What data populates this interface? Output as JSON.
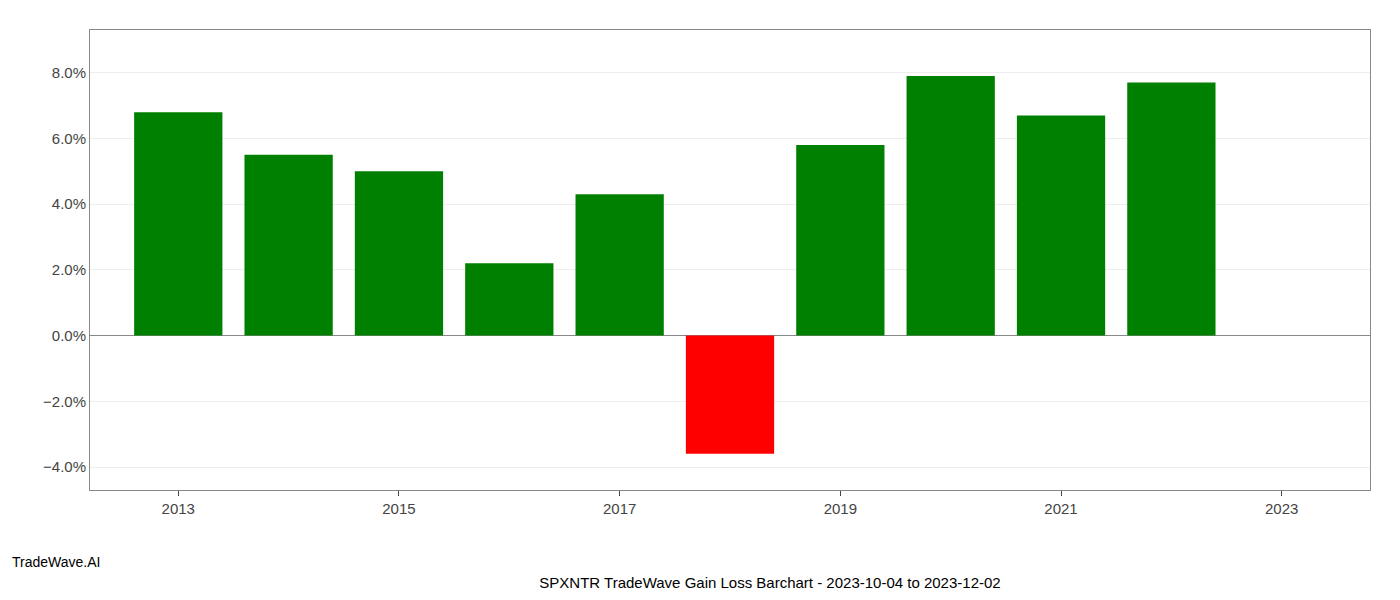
{
  "chart_data": {
    "type": "bar",
    "title": "SPXNTR TradeWave Gain Loss Barchart - 2023-10-04 to 2023-12-02",
    "annotations": [
      "TradeWave.AI"
    ],
    "x": [
      2013,
      2014,
      2015,
      2016,
      2017,
      2018,
      2019,
      2020,
      2021,
      2022
    ],
    "values": [
      0.068,
      0.055,
      0.05,
      0.022,
      0.043,
      -0.036,
      0.058,
      0.079,
      0.067,
      0.077
    ],
    "colors": [
      "#008000",
      "#008000",
      "#008000",
      "#008000",
      "#008000",
      "#ff0000",
      "#008000",
      "#008000",
      "#008000",
      "#008000"
    ],
    "xlim": [
      2012.2,
      2023.8
    ],
    "xticks": [
      2013,
      2015,
      2017,
      2019,
      2021,
      2023
    ],
    "ylim": [
      -0.047,
      0.093
    ],
    "yticks": [
      {
        "value": -0.04,
        "label": "−4.0%"
      },
      {
        "value": -0.02,
        "label": "−2.0%"
      },
      {
        "value": 0.0,
        "label": "0.0%"
      },
      {
        "value": 0.02,
        "label": "2.0%"
      },
      {
        "value": 0.04,
        "label": "4.0%"
      },
      {
        "value": 0.06,
        "label": "6.0%"
      },
      {
        "value": 0.08,
        "label": "8.0%"
      }
    ],
    "grid": true
  }
}
